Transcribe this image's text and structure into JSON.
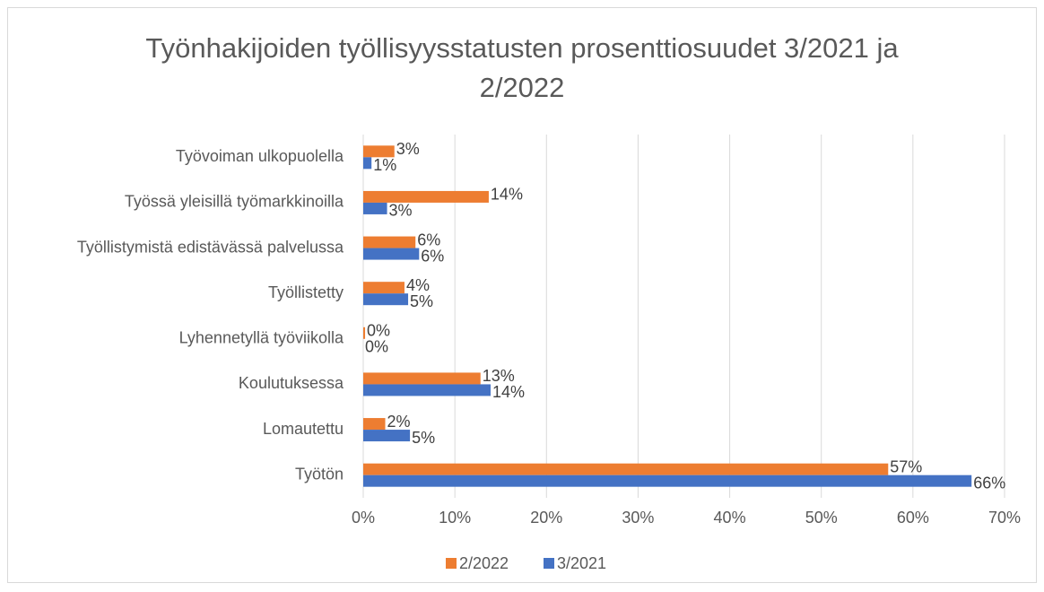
{
  "chart_data": {
    "type": "barh",
    "title": "Työnhakijoiden työllisyysstatusten prosenttiosuudet 3/2021 ja 2/2022",
    "categories": [
      "Työvoiman ulkopuolella",
      "Työssä yleisillä työmarkkinoilla",
      "Työllistymistä edistävässä palvelussa",
      "Työllistetty",
      "Lyhennetyllä työviikolla",
      "Koulutuksessa",
      "Lomautettu",
      "Työtön"
    ],
    "series": [
      {
        "name": "2/2022",
        "color": "#ed7d31",
        "values": [
          3.4,
          13.7,
          5.7,
          4.5,
          0.2,
          12.8,
          2.4,
          57.3
        ],
        "value_labels": [
          "3%",
          "14%",
          "6%",
          "4%",
          "0%",
          "13%",
          "2%",
          "57%"
        ]
      },
      {
        "name": "3/2021",
        "color": "#4472c4",
        "values": [
          0.9,
          2.6,
          6.1,
          4.9,
          0,
          13.9,
          5.1,
          66.4
        ],
        "value_labels": [
          "1%",
          "3%",
          "6%",
          "5%",
          "0%",
          "14%",
          "5%",
          "66%"
        ]
      }
    ],
    "xlim": [
      0,
      70
    ],
    "xticks": [
      {
        "value": 0,
        "label": "0%"
      },
      {
        "value": 10,
        "label": "10%"
      },
      {
        "value": 20,
        "label": "20%"
      },
      {
        "value": 30,
        "label": "30%"
      },
      {
        "value": 40,
        "label": "40%"
      },
      {
        "value": 50,
        "label": "50%"
      },
      {
        "value": 60,
        "label": "60%"
      },
      {
        "value": 70,
        "label": "70%"
      }
    ],
    "grid": true,
    "legend": "bottom"
  }
}
